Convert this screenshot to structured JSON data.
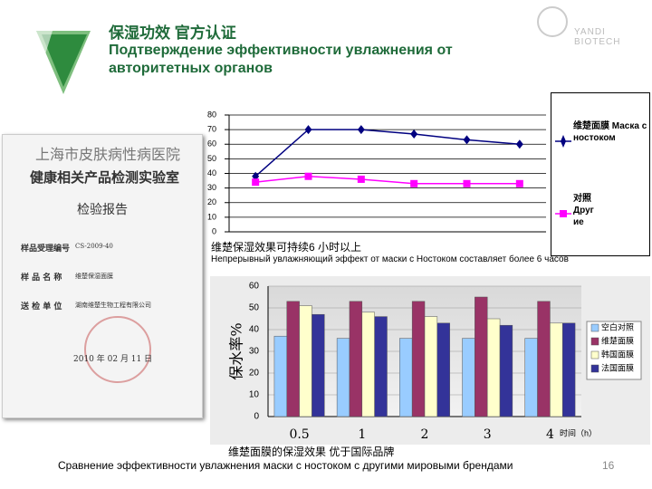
{
  "slide": {
    "title": "保湿功效 官方认证",
    "subtitle": "Подтверждение эффективности увлажнения от авторитетных органов",
    "logo": "YANDI BIOTECH",
    "page_number": "16"
  },
  "document": {
    "hospital": "上海市皮肤病性病医院",
    "lab": "健康相关产品检测实验室",
    "heading": "检验报告",
    "fields": [
      {
        "label": "样品受理编号",
        "value": "CS-2009-40"
      },
      {
        "label": "样 品 名 称",
        "value": "维楚保湿面膜"
      },
      {
        "label": "送 检 单 位",
        "value": "湖南维楚生物工程有限公司"
      }
    ],
    "date": "2010 年 02 月 11 日"
  },
  "chart_data": [
    {
      "type": "line",
      "caption": "维楚保湿效果可持续6 小时以上",
      "caption_ru": "Непрерывный увлажняющий эффект от маски с Ностоком составляет более 6 часов",
      "categories": [
        null,
        null,
        null,
        null,
        null,
        null
      ],
      "ylim": [
        0,
        80
      ],
      "yticks": [
        0,
        10,
        20,
        30,
        40,
        50,
        60,
        70,
        80
      ],
      "grid": true,
      "series": [
        {
          "name": "维楚面膜 Маска с ностоком",
          "color": "#000080",
          "marker": "diamond",
          "values": [
            38,
            70,
            70,
            67,
            63,
            60
          ]
        },
        {
          "name": "对照 Другие",
          "color": "#ff00ff",
          "marker": "square",
          "values": [
            34,
            38,
            36,
            33,
            33,
            33
          ]
        }
      ]
    },
    {
      "type": "bar",
      "caption": "维楚面膜的保湿效果 优于国际品牌",
      "caption_ru": "Сравнение эффективности увлажнения маски с ностоком с другими мировыми брендами",
      "y_label": "保水率%",
      "x_label": "时间（h）",
      "categories": [
        "0.5",
        "1",
        "2",
        "3",
        "4"
      ],
      "ylim": [
        0,
        60
      ],
      "yticks": [
        0,
        10,
        20,
        30,
        40,
        50,
        60
      ],
      "grid": true,
      "series": [
        {
          "name": "空白对照",
          "color": "#99ccff",
          "values": [
            37,
            36,
            36,
            36,
            36
          ]
        },
        {
          "name": "维楚面膜",
          "color": "#993366",
          "values": [
            53,
            53,
            53,
            55,
            53
          ]
        },
        {
          "name": "韩国面膜",
          "color": "#ffffcc",
          "values": [
            51,
            48,
            46,
            45,
            43
          ]
        },
        {
          "name": "法国面膜",
          "color": "#333399",
          "values": [
            47,
            46,
            43,
            42,
            43
          ]
        }
      ]
    }
  ]
}
